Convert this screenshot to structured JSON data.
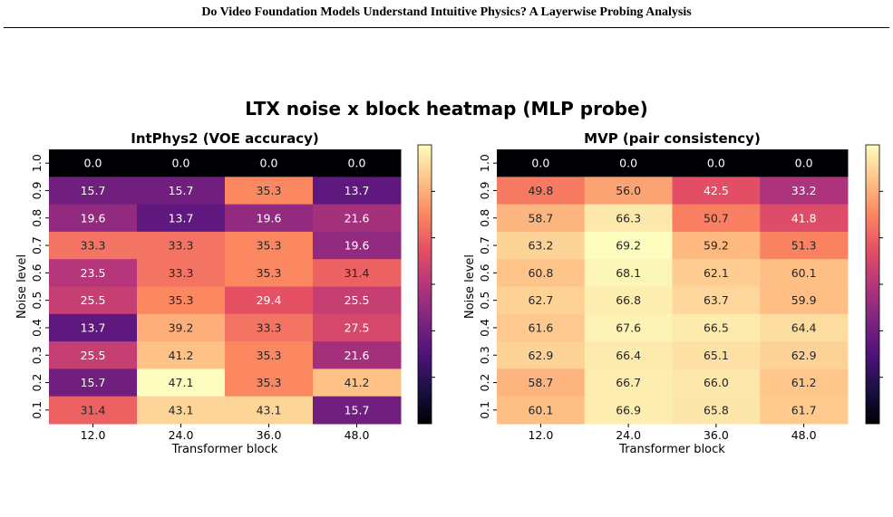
{
  "page": {
    "header": "Do Video Foundation Models Understand Intuitive Physics?  A Layerwise Probing Analysis",
    "figure_title": "LTX noise x block heatmap (MLP probe)"
  },
  "colormap": [
    "#000004",
    "#1c1044",
    "#4f127b",
    "#812581",
    "#b5367a",
    "#e55064",
    "#fb8761",
    "#fec287",
    "#fcfdbf"
  ],
  "chart_data": [
    {
      "type": "heatmap",
      "title": "IntPhys2 (VOE accuracy)",
      "xlabel": "Transformer block",
      "ylabel": "Noise level",
      "x_categories": [
        "12.0",
        "24.0",
        "36.0",
        "48.0"
      ],
      "y_categories": [
        "1.0",
        "0.9",
        "0.8",
        "0.7",
        "0.6",
        "0.5",
        "0.4",
        "0.3",
        "0.2",
        "0.1"
      ],
      "values": [
        [
          0.0,
          0.0,
          0.0,
          0.0
        ],
        [
          15.7,
          15.7,
          35.3,
          13.7
        ],
        [
          19.6,
          13.7,
          19.6,
          21.6
        ],
        [
          33.3,
          33.3,
          35.3,
          19.6
        ],
        [
          23.5,
          33.3,
          35.3,
          31.4
        ],
        [
          25.5,
          35.3,
          29.4,
          25.5
        ],
        [
          13.7,
          39.2,
          33.3,
          27.5
        ],
        [
          25.5,
          41.2,
          35.3,
          21.6
        ],
        [
          15.7,
          47.1,
          35.3,
          41.2
        ],
        [
          31.4,
          43.1,
          43.1,
          15.7
        ]
      ],
      "value_range": [
        0,
        47.1
      ],
      "colorbar": true
    },
    {
      "type": "heatmap",
      "title": "MVP (pair consistency)",
      "xlabel": "Transformer block",
      "ylabel": "Noise level",
      "x_categories": [
        "12.0",
        "24.0",
        "36.0",
        "48.0"
      ],
      "y_categories": [
        "1.0",
        "0.9",
        "0.8",
        "0.7",
        "0.6",
        "0.5",
        "0.4",
        "0.3",
        "0.2",
        "0.1"
      ],
      "values": [
        [
          0.0,
          0.0,
          0.0,
          0.0
        ],
        [
          49.8,
          56.0,
          42.5,
          33.2
        ],
        [
          58.7,
          66.3,
          50.7,
          41.8
        ],
        [
          63.2,
          69.2,
          59.2,
          51.3
        ],
        [
          60.8,
          68.1,
          62.1,
          60.1
        ],
        [
          62.7,
          66.8,
          63.7,
          59.9
        ],
        [
          61.6,
          67.6,
          66.5,
          64.4
        ],
        [
          62.9,
          66.4,
          65.1,
          62.9
        ],
        [
          58.7,
          66.7,
          66.0,
          61.2
        ],
        [
          60.1,
          66.9,
          65.8,
          61.7
        ]
      ],
      "value_range": [
        0,
        69.2
      ],
      "colorbar": true
    }
  ]
}
